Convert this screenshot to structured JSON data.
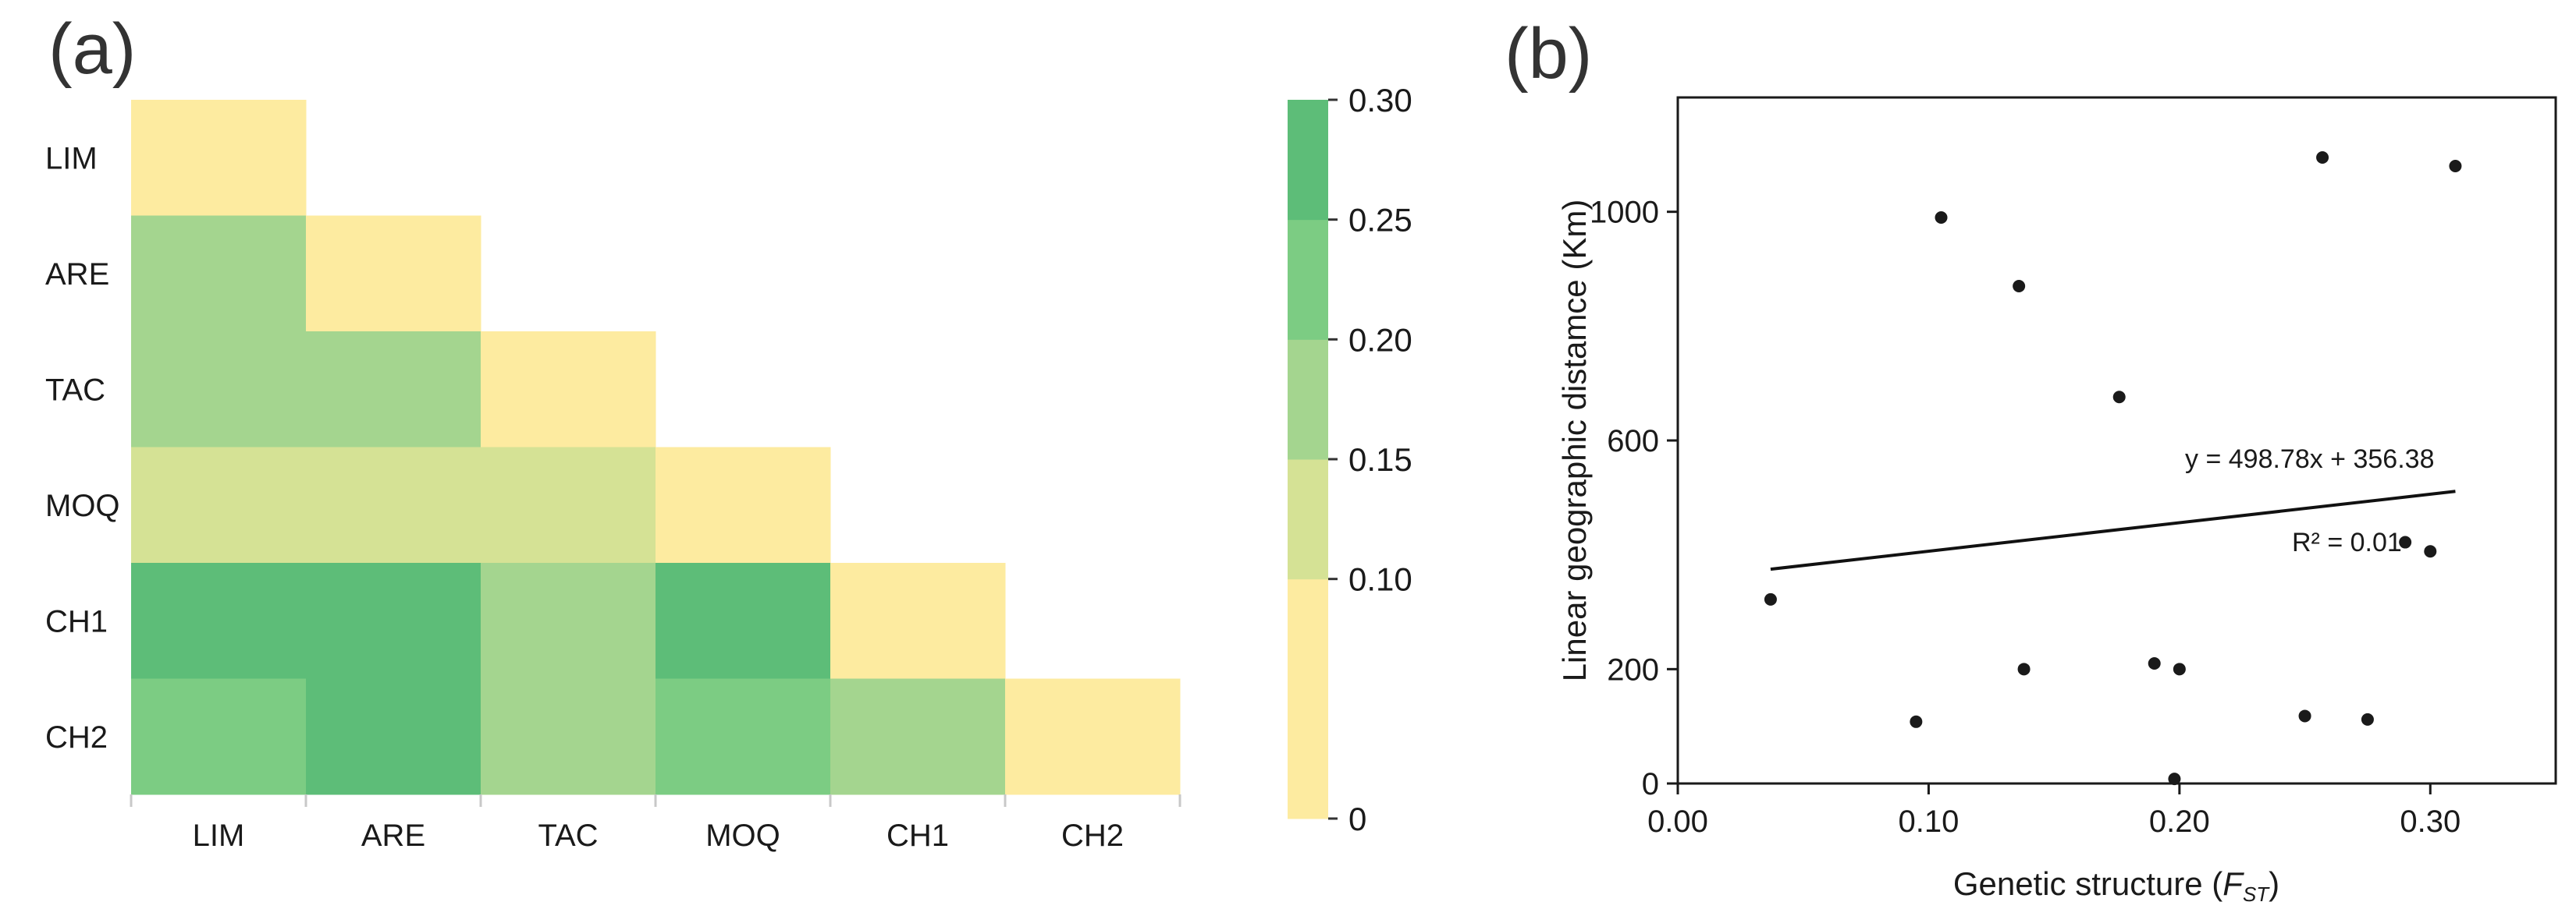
{
  "panel_a": {
    "label": "(a)"
  },
  "panel_b": {
    "label": "(b)"
  },
  "chart_data": [
    {
      "type": "heatmap",
      "id": "pairwise-fst-heatmap",
      "title": "",
      "row_labels": [
        "LIM",
        "ARE",
        "TAC",
        "MOQ",
        "CH1",
        "CH2"
      ],
      "col_labels": [
        "LIM",
        "ARE",
        "TAC",
        "MOQ",
        "CH1",
        "CH2"
      ],
      "values": [
        [
          0.05,
          null,
          null,
          null,
          null,
          null
        ],
        [
          0.17,
          0.05,
          null,
          null,
          null,
          null
        ],
        [
          0.15,
          0.15,
          0.05,
          null,
          null,
          null
        ],
        [
          0.12,
          0.11,
          0.13,
          0.05,
          null,
          null
        ],
        [
          0.28,
          0.27,
          0.18,
          0.26,
          0.05,
          null
        ],
        [
          0.23,
          0.27,
          0.17,
          0.22,
          0.18,
          0.05
        ]
      ],
      "colorbar": {
        "ticks": [
          "0",
          "0.10",
          "0.15",
          "0.20",
          "0.25",
          "0.30"
        ],
        "bands": [
          {
            "from": 0.0,
            "to": 0.1,
            "color": "#fdeba0"
          },
          {
            "from": 0.1,
            "to": 0.15,
            "color": "#d5e295"
          },
          {
            "from": 0.15,
            "to": 0.2,
            "color": "#a4d58f"
          },
          {
            "from": 0.2,
            "to": 0.25,
            "color": "#7ccc83"
          },
          {
            "from": 0.25,
            "to": 0.3,
            "color": "#5dbd78"
          }
        ]
      }
    },
    {
      "type": "scatter",
      "id": "fst-vs-distance-scatter",
      "title": "",
      "xlabel_main": "Genetic structure (",
      "xlabel_var": "F",
      "xlabel_sub": "ST",
      "xlabel_end": ")",
      "ylabel": "Linear geographic distamce (Km)",
      "xlim": [
        0.0,
        0.35
      ],
      "ylim": [
        0,
        1200
      ],
      "xticks": [
        "0.00",
        "0.10",
        "0.20",
        "0.30"
      ],
      "xtick_values": [
        0.0,
        0.1,
        0.2,
        0.3
      ],
      "yticks": [
        "0",
        "200",
        "600",
        "1000"
      ],
      "ytick_values": [
        0,
        200,
        600,
        1000
      ],
      "points": [
        {
          "x": 0.037,
          "y": 322
        },
        {
          "x": 0.095,
          "y": 108
        },
        {
          "x": 0.105,
          "y": 990
        },
        {
          "x": 0.136,
          "y": 870
        },
        {
          "x": 0.138,
          "y": 200
        },
        {
          "x": 0.176,
          "y": 676
        },
        {
          "x": 0.19,
          "y": 210
        },
        {
          "x": 0.198,
          "y": 8
        },
        {
          "x": 0.2,
          "y": 200
        },
        {
          "x": 0.25,
          "y": 118
        },
        {
          "x": 0.257,
          "y": 1095
        },
        {
          "x": 0.275,
          "y": 112
        },
        {
          "x": 0.29,
          "y": 422
        },
        {
          "x": 0.3,
          "y": 406
        },
        {
          "x": 0.31,
          "y": 1080
        }
      ],
      "regression": {
        "slope": 498.78,
        "intercept": 356.38,
        "x_from": 0.037,
        "x_to": 0.31
      },
      "equation_label": "y = 498.78x + 356.38",
      "r2_label": "R² = 0.01"
    }
  ]
}
